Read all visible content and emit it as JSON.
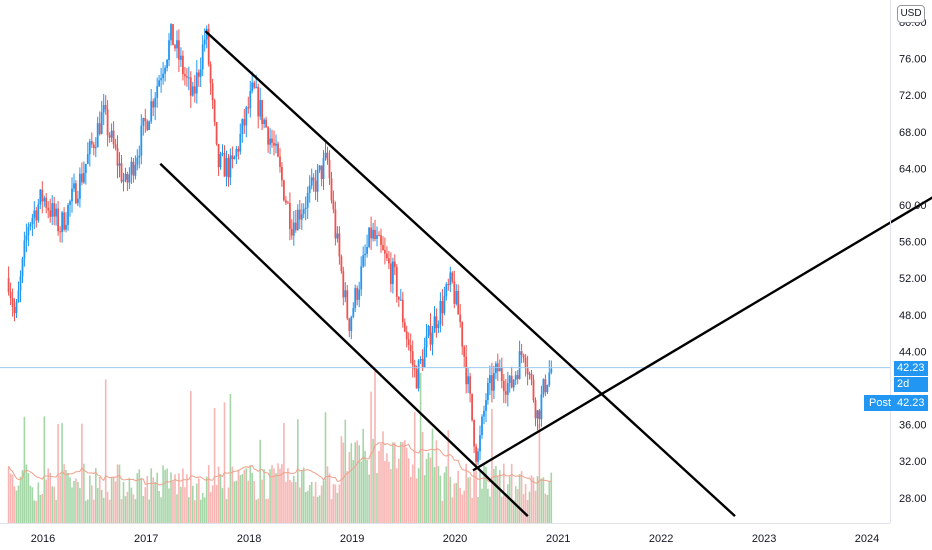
{
  "currency": "USD",
  "last_price_label": "42.23",
  "countdown_label": "2d 23h",
  "post_market": {
    "label": "Post",
    "price": "42.23"
  },
  "colors": {
    "up": "#2196f3",
    "down": "#ef5350",
    "volume_up": "#a5d6a7",
    "volume_down": "#f7b5b3",
    "volume_ma": "#f0a08a",
    "trendline": "#000000",
    "last_price_line": "#9ec9f0"
  },
  "chart_data": {
    "type": "candlestick",
    "yaxis": {
      "ticks": [
        "28.00",
        "32.00",
        "36.00",
        "40.00",
        "44.00",
        "48.00",
        "52.00",
        "56.00",
        "60.00",
        "64.00",
        "68.00",
        "72.00",
        "76.00",
        "80.00"
      ],
      "range": [
        26.0,
        83.0
      ]
    },
    "xaxis": {
      "ticks": [
        "2016",
        "2017",
        "2018",
        "2019",
        "2020",
        "2021",
        "2022",
        "2023",
        "2024"
      ],
      "range": [
        "2015-09-01",
        "2024-12-01"
      ]
    },
    "price_waypoints": [
      {
        "x": "2015-09-01",
        "y": 52.0
      },
      {
        "x": "2015-09-25",
        "y": 47.5
      },
      {
        "x": "2015-11-10",
        "y": 58.0
      },
      {
        "x": "2016-01-01",
        "y": 61.0
      },
      {
        "x": "2016-03-01",
        "y": 57.5
      },
      {
        "x": "2016-05-15",
        "y": 63.0
      },
      {
        "x": "2016-08-01",
        "y": 70.0
      },
      {
        "x": "2016-10-20",
        "y": 62.0
      },
      {
        "x": "2016-12-01",
        "y": 66.0
      },
      {
        "x": "2017-04-01",
        "y": 78.5
      },
      {
        "x": "2017-06-15",
        "y": 71.5
      },
      {
        "x": "2017-08-01",
        "y": 79.0
      },
      {
        "x": "2017-09-10",
        "y": 64.5
      },
      {
        "x": "2017-11-01",
        "y": 64.0
      },
      {
        "x": "2018-01-15",
        "y": 72.5
      },
      {
        "x": "2018-04-01",
        "y": 66.0
      },
      {
        "x": "2018-06-01",
        "y": 58.0
      },
      {
        "x": "2018-08-01",
        "y": 61.0
      },
      {
        "x": "2018-10-05",
        "y": 65.0
      },
      {
        "x": "2018-11-01",
        "y": 57.5
      },
      {
        "x": "2018-12-20",
        "y": 47.0
      },
      {
        "x": "2019-03-10",
        "y": 57.0
      },
      {
        "x": "2019-06-01",
        "y": 52.0
      },
      {
        "x": "2019-08-15",
        "y": 41.0
      },
      {
        "x": "2019-10-10",
        "y": 46.5
      },
      {
        "x": "2019-12-20",
        "y": 51.5
      },
      {
        "x": "2020-01-20",
        "y": 47.0
      },
      {
        "x": "2020-03-20",
        "y": 32.0
      },
      {
        "x": "2020-04-20",
        "y": 39.0
      },
      {
        "x": "2020-06-01",
        "y": 42.0
      },
      {
        "x": "2020-07-15",
        "y": 40.0
      },
      {
        "x": "2020-09-01",
        "y": 44.5
      },
      {
        "x": "2020-10-20",
        "y": 37.0
      },
      {
        "x": "2020-11-20",
        "y": 41.0
      },
      {
        "x": "2020-12-10",
        "y": 42.23
      }
    ],
    "drawings": [
      {
        "name": "channel-upper",
        "from": {
          "x": "2017-07-30",
          "y": 79.0
        },
        "to": {
          "x": "2022-09-20",
          "y": 26.0
        }
      },
      {
        "name": "channel-lower",
        "from": {
          "x": "2017-02-20",
          "y": 64.5
        },
        "to": {
          "x": "2020-09-15",
          "y": 26.0
        }
      },
      {
        "name": "rising-support",
        "from": {
          "x": "2020-03-05",
          "y": 31.0
        },
        "to": {
          "x": "2024-11-20",
          "y": 62.5
        }
      }
    ],
    "volume": {
      "moving_average": true
    }
  }
}
